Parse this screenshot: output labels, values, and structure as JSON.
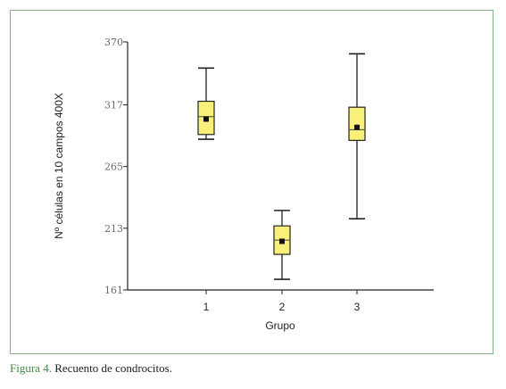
{
  "chart_data": {
    "type": "boxplot",
    "xlabel": "Grupo",
    "ylabel": "Nº células en 10 campos 400X",
    "ylim": [
      161,
      370
    ],
    "yticks": [
      "370",
      "317",
      "265",
      "213",
      "161"
    ],
    "ytick_values": [
      370,
      317,
      265,
      213,
      161
    ],
    "categories": [
      "1",
      "2",
      "3"
    ],
    "box_color": "#f9f07a",
    "boxes": [
      {
        "category": "1",
        "min": 288,
        "q1": 292,
        "median": 307,
        "q3": 320,
        "max": 348,
        "mean": 305
      },
      {
        "category": "2",
        "min": 170,
        "q1": 191,
        "median": 203,
        "q3": 215,
        "max": 228,
        "mean": 202
      },
      {
        "category": "3",
        "min": 221,
        "q1": 287,
        "median": 296,
        "q3": 315,
        "max": 360,
        "mean": 298
      }
    ]
  },
  "caption": {
    "label": "Figura 4.",
    "text": " Recuento de condrocitos."
  },
  "colors": {
    "frame": "#79b47a",
    "caption_label": "#3e8a44"
  }
}
